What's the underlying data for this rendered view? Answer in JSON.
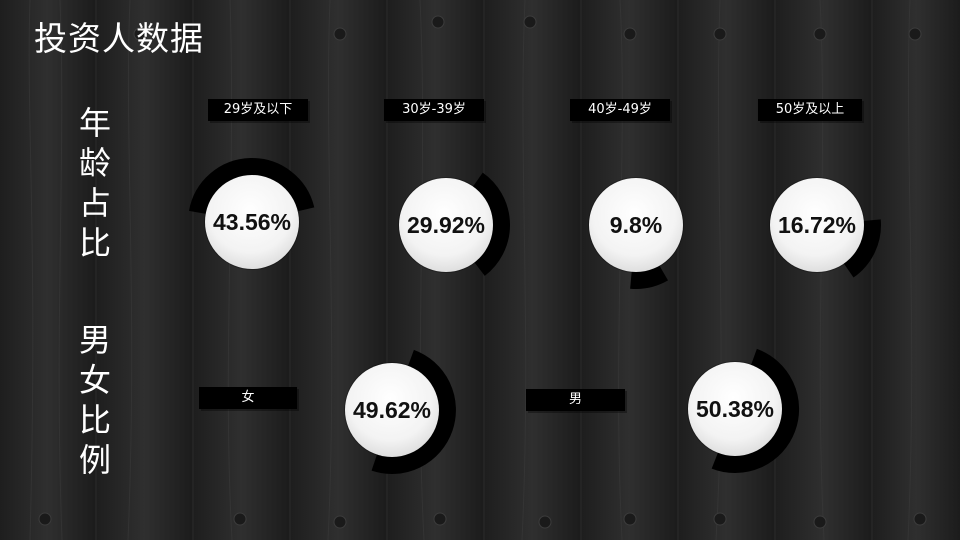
{
  "title": "投资人数据",
  "age_section": {
    "label": [
      "年",
      "龄",
      "占",
      "比"
    ],
    "items": [
      {
        "tag": "29岁及以下",
        "value_label": "43.56%",
        "value": 43.56
      },
      {
        "tag": "30岁-39岁",
        "value_label": "29.92%",
        "value": 29.92
      },
      {
        "tag": "40岁-49岁",
        "value_label": "9.8%",
        "value": 9.8
      },
      {
        "tag": "50岁及以上",
        "value_label": "16.72%",
        "value": 16.72
      }
    ]
  },
  "gender_section": {
    "label": [
      "男",
      "女",
      "比",
      "例"
    ],
    "items": [
      {
        "tag": "女",
        "value_label": "49.62%",
        "value": 49.62
      },
      {
        "tag": "男",
        "value_label": "50.38%",
        "value": 50.38
      }
    ]
  },
  "colors": {
    "ring": "#000000",
    "disc": "#f2f2f2",
    "text": "#ffffff",
    "value_text": "#111111"
  }
}
